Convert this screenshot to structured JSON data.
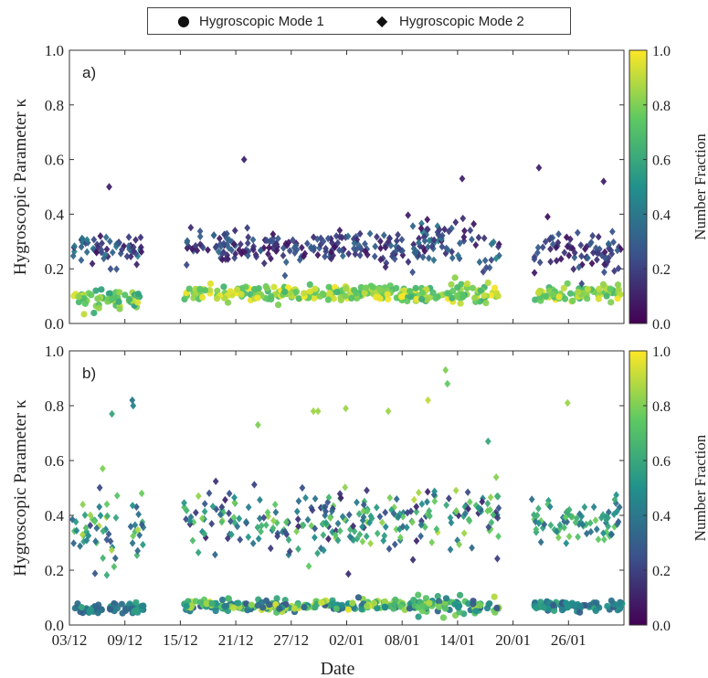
{
  "legend": {
    "mode1_label": "Hygroscopic Mode 1",
    "mode2_label": "Hygroscopic Mode 2",
    "mode1_marker": "circle",
    "mode2_marker": "diamond"
  },
  "colormap": {
    "name": "viridis",
    "stops": [
      "#440154",
      "#3b528b",
      "#21918c",
      "#5ec962",
      "#fde725"
    ]
  },
  "chart_data": [
    {
      "type": "scatter",
      "panel_label": "a)",
      "xlabel": "",
      "ylabel": "Hygroscopic Parameter κ",
      "ylim": [
        0.0,
        1.0
      ],
      "yticks": [
        "0.0",
        "0.2",
        "0.4",
        "0.6",
        "0.8",
        "1.0"
      ],
      "xticks": [
        "03/12",
        "09/12",
        "15/12",
        "21/12",
        "27/12",
        "02/01",
        "08/01",
        "14/01",
        "20/01",
        "26/01"
      ],
      "xlim_days": [
        0,
        60
      ],
      "colorbar": {
        "label": "Number Fraction",
        "range": [
          0.0,
          1.0
        ],
        "ticks": [
          "0.0",
          "0.2",
          "0.4",
          "0.6",
          "0.8",
          "1.0"
        ]
      },
      "series": [
        {
          "name": "Hygroscopic Mode 1",
          "marker": "circle",
          "segments": [
            {
              "x_range": [
                0.3,
                7.8
              ],
              "kappa_mean": 0.095,
              "kappa_spread": 0.025,
              "fraction_range": [
                0.55,
                0.95
              ]
            },
            {
              "x_range": [
                12.4,
                36.3
              ],
              "kappa_mean": 0.11,
              "kappa_spread": 0.02,
              "fraction_range": [
                0.65,
                1.0
              ]
            },
            {
              "x_range": [
                36.5,
                46.5
              ],
              "kappa_mean": 0.11,
              "kappa_spread": 0.03,
              "fraction_range": [
                0.6,
                1.0
              ]
            },
            {
              "x_range": [
                50.0,
                59.8
              ],
              "kappa_mean": 0.11,
              "kappa_spread": 0.02,
              "fraction_range": [
                0.65,
                1.0
              ]
            }
          ]
        },
        {
          "name": "Hygroscopic Mode 2",
          "marker": "diamond",
          "segments": [
            {
              "x_range": [
                0.3,
                7.8
              ],
              "kappa_mean": 0.26,
              "kappa_spread": 0.05,
              "fraction_range": [
                0.05,
                0.45
              ]
            },
            {
              "x_range": [
                12.4,
                36.3
              ],
              "kappa_mean": 0.28,
              "kappa_spread": 0.04,
              "fraction_range": [
                0.05,
                0.35
              ]
            },
            {
              "x_range": [
                36.5,
                46.5
              ],
              "kappa_mean": 0.3,
              "kappa_spread": 0.06,
              "fraction_range": [
                0.05,
                0.45
              ]
            },
            {
              "x_range": [
                50.0,
                59.8
              ],
              "kappa_mean": 0.26,
              "kappa_spread": 0.05,
              "fraction_range": [
                0.05,
                0.35
              ]
            }
          ],
          "notable_points": [
            {
              "x": 4.3,
              "y": 0.5,
              "fraction": 0.1
            },
            {
              "x": 18.9,
              "y": 0.6,
              "fraction": 0.1
            },
            {
              "x": 42.5,
              "y": 0.53,
              "fraction": 0.1
            },
            {
              "x": 50.8,
              "y": 0.57,
              "fraction": 0.1
            },
            {
              "x": 57.8,
              "y": 0.52,
              "fraction": 0.1
            }
          ]
        }
      ]
    },
    {
      "type": "scatter",
      "panel_label": "b)",
      "xlabel": "Date",
      "ylabel": "Hygroscopic Parameter κ",
      "ylim": [
        0.0,
        1.0
      ],
      "yticks": [
        "0.0",
        "0.2",
        "0.4",
        "0.6",
        "0.8",
        "1.0"
      ],
      "xticks": [
        "03/12",
        "09/12",
        "15/12",
        "21/12",
        "27/12",
        "02/01",
        "08/01",
        "14/01",
        "20/01",
        "26/01"
      ],
      "xlim_days": [
        0,
        60
      ],
      "colorbar": {
        "label": "Number Fraction",
        "range": [
          0.0,
          1.0
        ],
        "ticks": [
          "0.0",
          "0.2",
          "0.4",
          "0.6",
          "0.8",
          "1.0"
        ]
      },
      "series": [
        {
          "name": "Hygroscopic Mode 1",
          "marker": "circle",
          "segments": [
            {
              "x_range": [
                0.3,
                8.0
              ],
              "kappa_mean": 0.06,
              "kappa_spread": 0.015,
              "fraction_range": [
                0.3,
                0.6
              ]
            },
            {
              "x_range": [
                12.4,
                36.3
              ],
              "kappa_mean": 0.07,
              "kappa_spread": 0.015,
              "fraction_range": [
                0.25,
                0.95
              ]
            },
            {
              "x_range": [
                36.5,
                46.5
              ],
              "kappa_mean": 0.07,
              "kappa_spread": 0.025,
              "fraction_range": [
                0.25,
                0.9
              ]
            },
            {
              "x_range": [
                50.0,
                59.8
              ],
              "kappa_mean": 0.07,
              "kappa_spread": 0.015,
              "fraction_range": [
                0.25,
                0.6
              ]
            }
          ]
        },
        {
          "name": "Hygroscopic Mode 2",
          "marker": "diamond",
          "segments": [
            {
              "x_range": [
                0.3,
                8.0
              ],
              "kappa_mean": 0.36,
              "kappa_spread": 0.12,
              "fraction_range": [
                0.2,
                0.9
              ]
            },
            {
              "x_range": [
                12.4,
                36.3
              ],
              "kappa_mean": 0.38,
              "kappa_spread": 0.08,
              "fraction_range": [
                0.1,
                0.85
              ]
            },
            {
              "x_range": [
                36.5,
                46.5
              ],
              "kappa_mean": 0.4,
              "kappa_spread": 0.1,
              "fraction_range": [
                0.1,
                0.9
              ]
            },
            {
              "x_range": [
                50.0,
                59.8
              ],
              "kappa_mean": 0.38,
              "kappa_spread": 0.06,
              "fraction_range": [
                0.3,
                0.8
              ]
            }
          ],
          "notable_points": [
            {
              "x": 6.8,
              "y": 0.82,
              "fraction": 0.4
            },
            {
              "x": 6.9,
              "y": 0.8,
              "fraction": 0.45
            },
            {
              "x": 4.6,
              "y": 0.77,
              "fraction": 0.6
            },
            {
              "x": 20.4,
              "y": 0.73,
              "fraction": 0.8
            },
            {
              "x": 26.4,
              "y": 0.78,
              "fraction": 0.85
            },
            {
              "x": 26.9,
              "y": 0.78,
              "fraction": 0.85
            },
            {
              "x": 29.9,
              "y": 0.79,
              "fraction": 0.85
            },
            {
              "x": 34.5,
              "y": 0.78,
              "fraction": 0.85
            },
            {
              "x": 40.7,
              "y": 0.93,
              "fraction": 0.8
            },
            {
              "x": 40.9,
              "y": 0.88,
              "fraction": 0.75
            },
            {
              "x": 38.8,
              "y": 0.82,
              "fraction": 0.9
            },
            {
              "x": 53.9,
              "y": 0.81,
              "fraction": 0.85
            },
            {
              "x": 45.3,
              "y": 0.67,
              "fraction": 0.6
            }
          ]
        }
      ]
    }
  ]
}
